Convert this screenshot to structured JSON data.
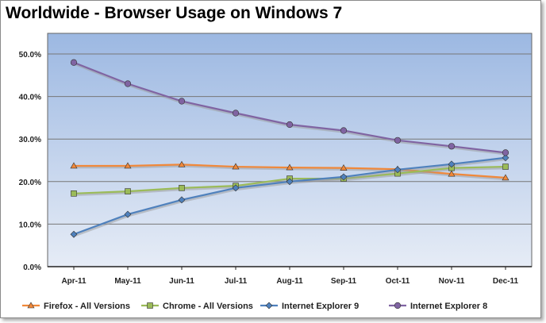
{
  "chart_data": {
    "type": "line",
    "title": "Worldwide - Browser Usage on Windows 7",
    "xlabel": "",
    "ylabel": "",
    "ylim": [
      0,
      50
    ],
    "yticks": [
      "0.0%",
      "10.0%",
      "20.0%",
      "30.0%",
      "40.0%",
      "50.0%"
    ],
    "grid": true,
    "legend_position": "bottom",
    "categories": [
      "Apr-11",
      "May-11",
      "Jun-11",
      "Jul-11",
      "Aug-11",
      "Sep-11",
      "Oct-11",
      "Nov-11",
      "Dec-11"
    ],
    "series": [
      {
        "name": "Firefox - All Versions",
        "color": "#f0883a",
        "marker": "triangle",
        "values": [
          23.7,
          23.7,
          24.0,
          23.5,
          23.3,
          23.2,
          22.9,
          21.8,
          20.9
        ]
      },
      {
        "name": "Chrome - All Versions",
        "color": "#9bbb59",
        "marker": "square",
        "values": [
          17.2,
          17.7,
          18.5,
          19.0,
          20.7,
          20.7,
          21.9,
          23.2,
          23.5
        ]
      },
      {
        "name": "Internet Explorer 9",
        "color": "#4f81bd",
        "marker": "diamond",
        "values": [
          7.6,
          12.3,
          15.7,
          18.5,
          20.0,
          21.1,
          22.8,
          24.1,
          25.6
        ]
      },
      {
        "name": "Internet Explorer 8",
        "color": "#8064a2",
        "marker": "circle",
        "values": [
          48.0,
          43.0,
          38.9,
          36.1,
          33.4,
          32.0,
          29.7,
          28.3,
          26.8
        ]
      }
    ]
  }
}
